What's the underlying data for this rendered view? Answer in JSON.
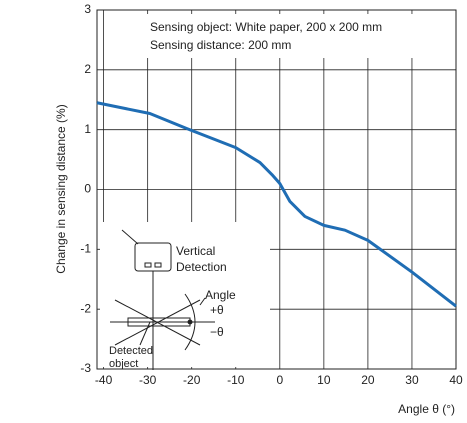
{
  "chart_data": {
    "type": "line",
    "ylabel": "Change in sensing distance  (%)",
    "xlabel": "Angle θ (°)",
    "annotations": [
      "Sensing object: White paper, 200 x 200 mm",
      "Sensing distance: 200 mm"
    ],
    "diagram_labels": [
      "Vertical",
      "Detection",
      "Angle",
      "+θ",
      "−θ",
      "Detected",
      "object"
    ],
    "x": [
      -41.5,
      -29.5,
      -20.5,
      -10,
      -4.5,
      -1.8,
      0,
      2.3,
      5.7,
      10,
      14.8,
      20,
      30,
      40
    ],
    "series": [
      {
        "color": "#1f6db4",
        "values": [
          1.45,
          1.27,
          1.0,
          0.7,
          0.45,
          0.25,
          0.1,
          -0.2,
          -0.45,
          -0.6,
          -0.68,
          -0.85,
          -1.38,
          -1.95
        ]
      }
    ],
    "xlim": [
      -41.5,
      40
    ],
    "xticks": [
      -40,
      -30,
      -20,
      -10,
      0,
      10,
      20,
      30,
      40
    ],
    "ylim": [
      -3,
      3
    ],
    "yticks": [
      -3,
      -2,
      -1,
      0,
      1,
      2,
      3
    ],
    "grid": true
  }
}
